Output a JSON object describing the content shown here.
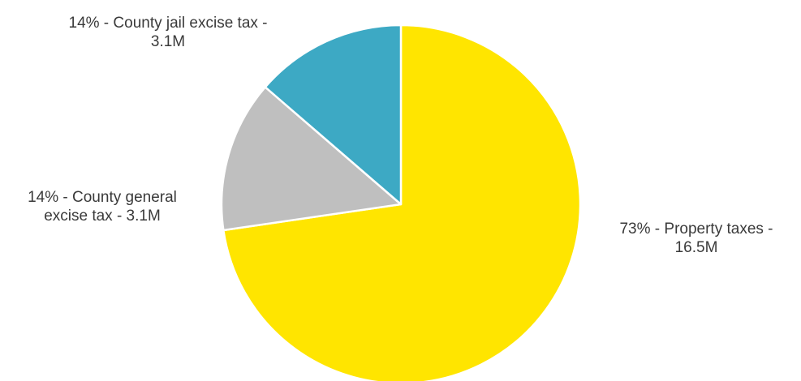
{
  "chart_data": {
    "type": "pie",
    "start_angle_deg": 0,
    "direction": "clockwise",
    "slices": [
      {
        "label_line1": "73% - Property taxes -",
        "label_line2": "16.5M",
        "percent": 73,
        "value_millions": 16.5,
        "color": "#FFE500"
      },
      {
        "label_line1": "14% - County general",
        "label_line2": "excise tax - 3.1M",
        "percent": 14,
        "value_millions": 3.1,
        "color": "#BFBFBF"
      },
      {
        "label_line1": "14% - County jail excise tax -",
        "label_line2": "3.1M",
        "percent": 14,
        "value_millions": 3.1,
        "color": "#3DA9C4"
      }
    ],
    "title": "",
    "legend": "none",
    "slice_border_color": "#FFFFFF"
  }
}
